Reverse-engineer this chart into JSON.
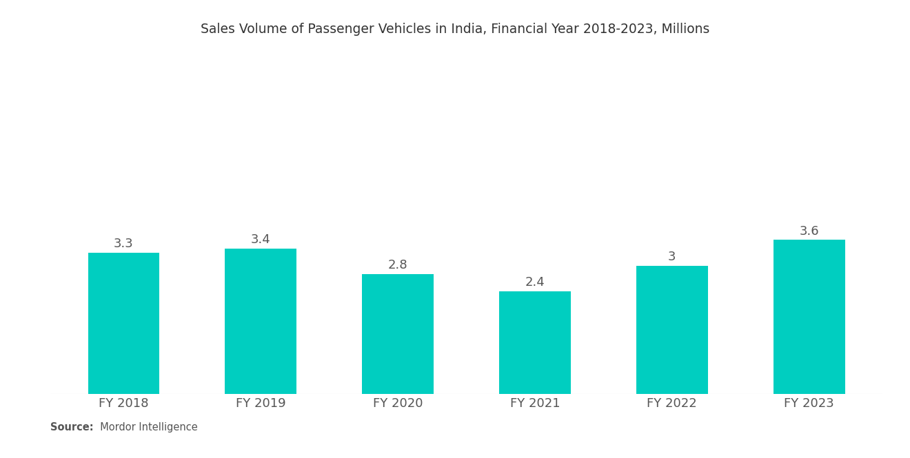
{
  "title": "Sales Volume of Passenger Vehicles in India, Financial Year 2018-2023, Millions",
  "categories": [
    "FY 2018",
    "FY 2019",
    "FY 2020",
    "FY 2021",
    "FY 2022",
    "FY 2023"
  ],
  "values": [
    3.3,
    3.4,
    2.8,
    2.4,
    3.0,
    3.6
  ],
  "value_labels": [
    "3.3",
    "3.4",
    "2.8",
    "2.4",
    "3",
    "3.6"
  ],
  "bar_color": "#00CEC0",
  "background_color": "#FFFFFF",
  "title_fontsize": 13.5,
  "label_fontsize": 13,
  "tick_fontsize": 13,
  "source_bold": "Source:",
  "source_normal": "  Mordor Intelligence",
  "ylim": [
    0,
    7.5
  ],
  "bar_width": 0.52
}
